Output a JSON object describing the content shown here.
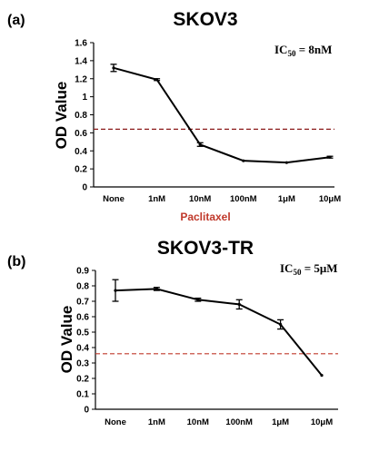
{
  "chart_data": [
    {
      "type": "line",
      "panel_label": "(a)",
      "title": "SKOV3",
      "annotation": "IC50 = 8nM",
      "annotation_parts": {
        "prefix": "IC",
        "subscript": "50",
        "suffix": " = 8nM"
      },
      "xlabel": "Paclitaxel",
      "ylabel": "OD Value",
      "categories": [
        "None",
        "1nM",
        "10nM",
        "100nM",
        "1μM",
        "10μM"
      ],
      "values": [
        1.32,
        1.19,
        0.47,
        0.29,
        0.27,
        0.33
      ],
      "errors": [
        0.04,
        0.01,
        0.02,
        0.0,
        0.0,
        0.01
      ],
      "ylim": [
        0,
        1.6
      ],
      "yticks": [
        0,
        0.2,
        0.4,
        0.6,
        0.8,
        1,
        1.2,
        1.4,
        1.6
      ],
      "ytick_labels": [
        "0",
        "0.2",
        "0.4",
        "0.6",
        "0.8",
        "1",
        "1.2",
        "1.4",
        "1.6"
      ],
      "threshold": 0.64,
      "grid": false,
      "colors": {
        "line": "#000000",
        "threshold": "#8b1a1a",
        "xlabel": "#c0392b"
      }
    },
    {
      "type": "line",
      "panel_label": "(b)",
      "title": "SKOV3-TR",
      "annotation": "IC50 = 5μM",
      "annotation_parts": {
        "prefix": "IC",
        "subscript": "50",
        "suffix": " = 5μM"
      },
      "xlabel": "",
      "ylabel": "OD Value",
      "categories": [
        "None",
        "1nM",
        "10nM",
        "100nM",
        "1μM",
        "10μM"
      ],
      "values": [
        0.77,
        0.78,
        0.71,
        0.68,
        0.55,
        0.22
      ],
      "errors": [
        0.07,
        0.01,
        0.01,
        0.03,
        0.03,
        0.0
      ],
      "ylim": [
        0,
        0.9
      ],
      "yticks": [
        0,
        0.1,
        0.2,
        0.3,
        0.4,
        0.5,
        0.6,
        0.7,
        0.8,
        0.9
      ],
      "ytick_labels": [
        "0",
        "0.1",
        "0.2",
        "0.3",
        "0.4",
        "0.5",
        "0.6",
        "0.7",
        "0.8",
        "0.9"
      ],
      "threshold": 0.36,
      "grid": false,
      "colors": {
        "line": "#000000",
        "threshold": "#c0392b",
        "xlabel": "#c0392b"
      }
    }
  ]
}
